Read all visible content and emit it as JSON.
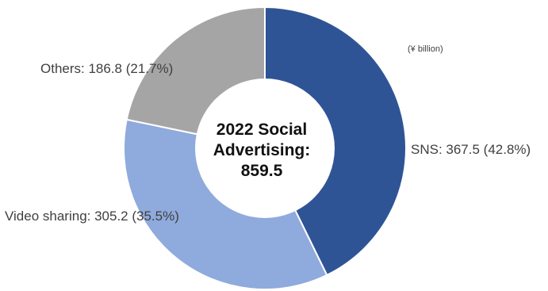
{
  "chart_data": {
    "type": "pie",
    "donut": true,
    "unit_note": "(¥ billion)",
    "center_text": [
      "2022 Social",
      "Advertising:",
      "859.5"
    ],
    "total": 859.5,
    "slices": [
      {
        "name": "SNS",
        "value": 367.5,
        "percent": 42.8,
        "label": "SNS: 367.5 (42.8%)",
        "color": "#2F5496"
      },
      {
        "name": "Video sharing",
        "value": 305.2,
        "percent": 35.5,
        "label": "Video sharing: 305.2 (35.5%)",
        "color": "#8FAADC"
      },
      {
        "name": "Others",
        "value": 186.8,
        "percent": 21.7,
        "label": "Others: 186.8 (21.7%)",
        "color": "#A5A5A5"
      }
    ],
    "start_angle_deg": 0,
    "direction": "clockwise",
    "legend": "none"
  }
}
